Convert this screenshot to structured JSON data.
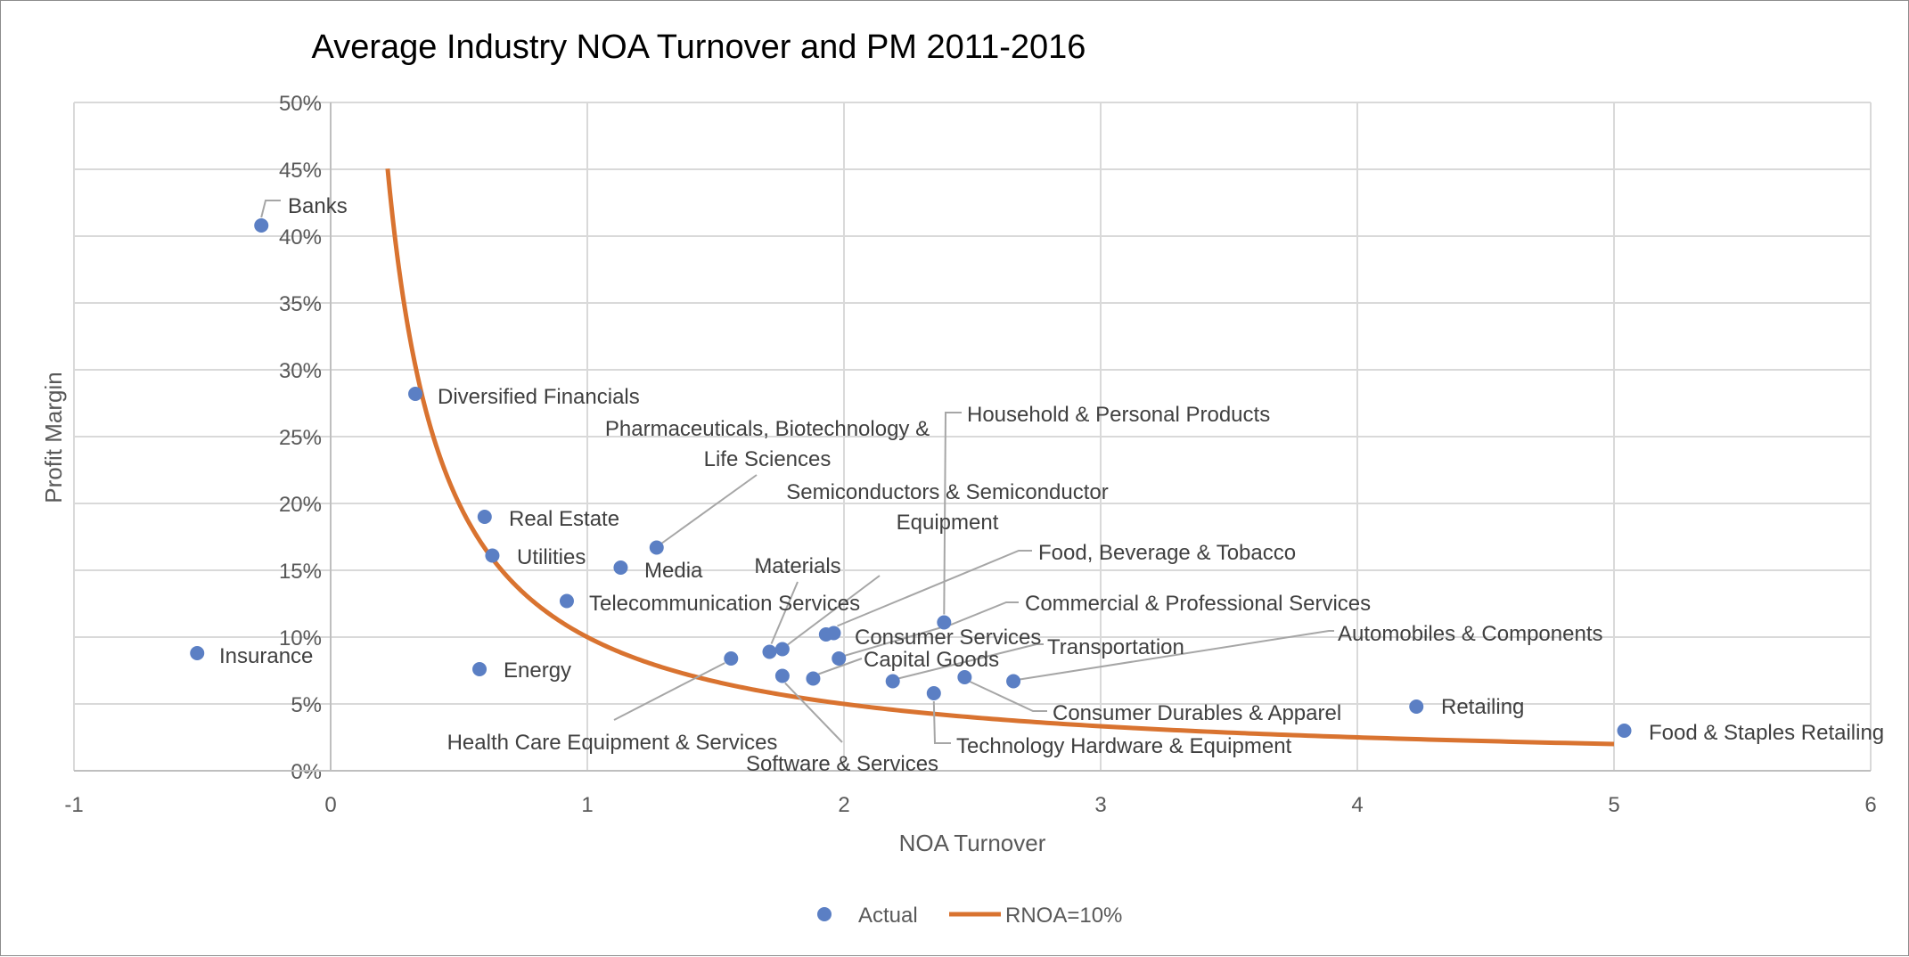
{
  "chart_data": {
    "type": "scatter",
    "title": "Average Industry NOA Turnover and PM 2011-2016",
    "xlabel": "NOA Turnover",
    "ylabel": "Profit Margin",
    "xlim": [
      -1,
      6
    ],
    "ylim": [
      0,
      0.5
    ],
    "x_ticks": [
      "-1",
      "0",
      "1",
      "2",
      "3",
      "4",
      "5",
      "6"
    ],
    "y_ticks": [
      "0%",
      "5%",
      "10%",
      "15%",
      "20%",
      "25%",
      "30%",
      "35%",
      "40%",
      "45%",
      "50%"
    ],
    "grid": true,
    "legend_position": "bottom",
    "colors": {
      "actual": "#5b7fc4",
      "curve": "#d97330",
      "grid": "#d9d9d9",
      "leader": "#a6a6a6"
    },
    "series": [
      {
        "name": "Actual",
        "kind": "points",
        "points": [
          {
            "label": "Banks",
            "x": -0.27,
            "y": 0.408
          },
          {
            "label": "Insurance",
            "x": -0.52,
            "y": 0.088
          },
          {
            "label": "Diversified Financials",
            "x": 0.33,
            "y": 0.282
          },
          {
            "label": "Real Estate",
            "x": 0.6,
            "y": 0.19
          },
          {
            "label": "Utilities",
            "x": 0.63,
            "y": 0.161
          },
          {
            "label": "Energy",
            "x": 0.58,
            "y": 0.076
          },
          {
            "label": "Media",
            "x": 1.13,
            "y": 0.152
          },
          {
            "label": "Telecommunication Services",
            "x": 0.92,
            "y": 0.127
          },
          {
            "label": "Pharmaceuticals, Biotechnology & Life Sciences",
            "x": 1.27,
            "y": 0.167
          },
          {
            "label": "Health Care Equipment & Services",
            "x": 1.56,
            "y": 0.084
          },
          {
            "label": "Materials",
            "x": 1.71,
            "y": 0.089
          },
          {
            "label": "Semiconductors & Semiconductor Equipment",
            "x": 1.76,
            "y": 0.091
          },
          {
            "label": "Software & Services",
            "x": 1.76,
            "y": 0.071
          },
          {
            "label": "Consumer Services",
            "x": 1.93,
            "y": 0.102
          },
          {
            "label": "Food, Beverage & Tobacco",
            "x": 1.96,
            "y": 0.103
          },
          {
            "label": "Capital Goods",
            "x": 1.88,
            "y": 0.069
          },
          {
            "label": "Commercial & Professional Services",
            "x": 1.98,
            "y": 0.084
          },
          {
            "label": "Transportation",
            "x": 2.19,
            "y": 0.067
          },
          {
            "label": "Household & Personal Products",
            "x": 2.39,
            "y": 0.111
          },
          {
            "label": "Technology Hardware & Equipment",
            "x": 2.35,
            "y": 0.058
          },
          {
            "label": "Consumer Durables & Apparel",
            "x": 2.47,
            "y": 0.07
          },
          {
            "label": "Automobiles & Components",
            "x": 2.66,
            "y": 0.067
          },
          {
            "label": "Retailing",
            "x": 4.23,
            "y": 0.048
          },
          {
            "label": "Food & Staples Retailing",
            "x": 5.04,
            "y": 0.03
          }
        ]
      },
      {
        "name": "RNOA=10%",
        "kind": "curve",
        "equation": "y = 0.10 / x",
        "x_range": [
          0.222,
          5.0
        ]
      }
    ]
  },
  "labels": [
    {
      "point": 0,
      "lines": [
        "Banks"
      ]
    },
    {
      "point": 1,
      "lines": [
        "Insurance"
      ]
    },
    {
      "point": 2,
      "lines": [
        "Diversified Financials"
      ]
    },
    {
      "point": 3,
      "lines": [
        "Real Estate"
      ]
    },
    {
      "point": 4,
      "lines": [
        "Utilities"
      ]
    },
    {
      "point": 5,
      "lines": [
        "Energy"
      ]
    },
    {
      "point": 6,
      "lines": [
        "Media"
      ]
    },
    {
      "point": 7,
      "lines": [
        "Telecommunication Services"
      ]
    },
    {
      "point": 8,
      "lines": [
        "Pharmaceuticals, Biotechnology &",
        "Life Sciences"
      ]
    },
    {
      "point": 9,
      "lines": [
        "Health Care Equipment & Services"
      ]
    },
    {
      "point": 10,
      "lines": [
        "Materials"
      ]
    },
    {
      "point": 11,
      "lines": [
        "Semiconductors & Semiconductor",
        "Equipment"
      ]
    },
    {
      "point": 12,
      "lines": [
        "Software & Services"
      ]
    },
    {
      "point": 13,
      "lines": [
        "Consumer Services"
      ]
    },
    {
      "point": 14,
      "lines": [
        "Food, Beverage & Tobacco"
      ]
    },
    {
      "point": 15,
      "lines": [
        "Capital Goods"
      ]
    },
    {
      "point": 16,
      "lines": [
        "Commercial & Professional Services"
      ]
    },
    {
      "point": 17,
      "lines": [
        "Transportation"
      ]
    },
    {
      "point": 18,
      "lines": [
        "Household & Personal Products"
      ]
    },
    {
      "point": 19,
      "lines": [
        "Technology Hardware & Equipment"
      ]
    },
    {
      "point": 20,
      "lines": [
        "Consumer Durables & Apparel"
      ]
    },
    {
      "point": 21,
      "lines": [
        "Automobiles & Components"
      ]
    },
    {
      "point": 22,
      "lines": [
        "Retailing"
      ]
    },
    {
      "point": 23,
      "lines": [
        "Food & Staples Retailing"
      ]
    }
  ],
  "legend": [
    {
      "label": "Actual",
      "marker": "circle"
    },
    {
      "label": "RNOA=10%",
      "marker": "line"
    }
  ]
}
